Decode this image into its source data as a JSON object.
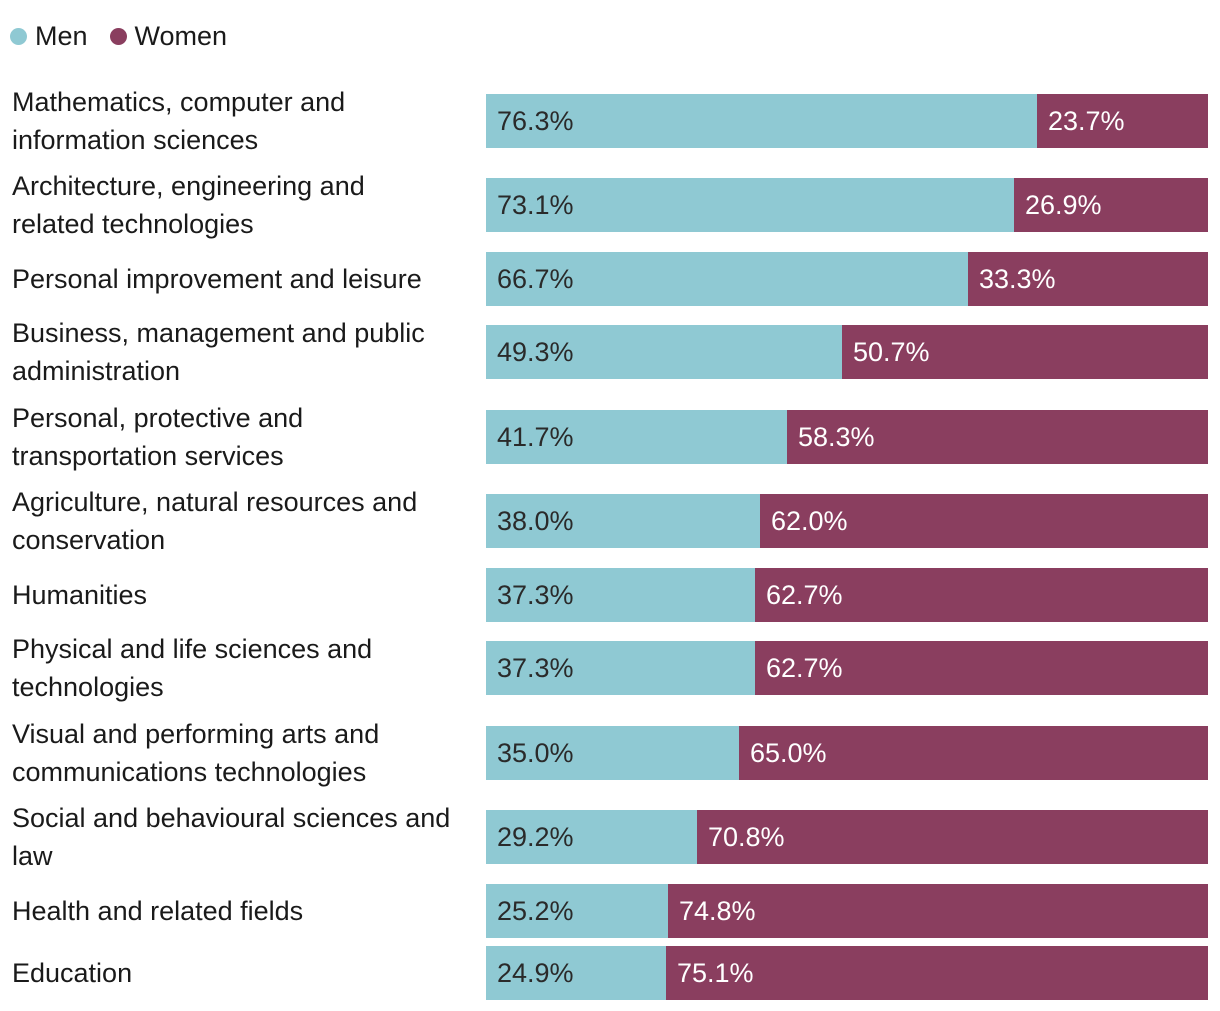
{
  "chart_data": {
    "type": "bar",
    "orientation": "horizontal",
    "stacked": true,
    "value_format": "percent_1dp",
    "categories": [
      "Mathematics, computer and information sciences",
      "Architecture, engineering and related technologies",
      "Personal improvement and leisure",
      "Business, management and public administration",
      "Personal, protective and transportation services",
      "Agriculture, natural resources and conservation",
      "Humanities",
      "Physical and life sciences and technologies",
      "Visual and performing arts and communications technologies",
      "Social and behavioural sciences and law",
      "Health and related fields",
      "Education"
    ],
    "series": [
      {
        "name": "Men",
        "color": "#8fc9d3",
        "values": [
          76.3,
          73.1,
          66.7,
          49.3,
          41.7,
          38.0,
          37.3,
          37.3,
          35.0,
          29.2,
          25.2,
          24.9
        ]
      },
      {
        "name": "Women",
        "color": "#8a3e5f",
        "values": [
          23.7,
          26.9,
          33.3,
          50.7,
          58.3,
          62.0,
          62.7,
          62.7,
          65.0,
          70.8,
          74.8,
          75.1
        ]
      }
    ],
    "xlim": [
      0,
      100
    ],
    "legend": "top-left",
    "grid": false,
    "label_colors": {
      "Men": "#2a2a2a",
      "Women": "#ffffff"
    }
  }
}
